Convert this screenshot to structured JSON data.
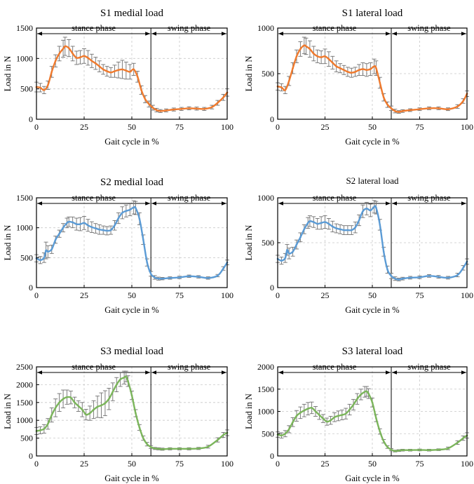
{
  "figure": {
    "xlabel": "Gait cycle in %",
    "ylabel": "Load in N"
  },
  "phases": {
    "stance": "stance phase",
    "swing": "swing phase",
    "stance_end_percent": 60
  },
  "chart_data": [
    {
      "type": "line",
      "title": "S1 medial load",
      "xlabel": "Gait cycle in %",
      "ylabel": "Load in N",
      "xlim": [
        0,
        100
      ],
      "ylim": [
        0,
        1500
      ],
      "xticks": [
        0,
        25,
        50,
        75,
        100
      ],
      "yticks": [
        0,
        500,
        1000,
        1500
      ],
      "color": "#ef7a2e",
      "x": [
        0,
        2,
        4,
        6,
        8,
        10,
        12,
        14,
        15,
        17,
        19,
        21,
        23,
        25,
        27,
        29,
        31,
        33,
        35,
        37,
        39,
        41,
        43,
        45,
        47,
        49,
        51,
        53,
        55,
        57,
        59,
        61,
        63,
        65,
        68,
        72,
        76,
        80,
        84,
        88,
        92,
        95,
        98,
        100
      ],
      "y": [
        530,
        520,
        480,
        560,
        780,
        960,
        1080,
        1160,
        1200,
        1170,
        1080,
        1010,
        1020,
        1040,
        1010,
        960,
        920,
        870,
        820,
        790,
        770,
        790,
        810,
        820,
        800,
        780,
        820,
        700,
        480,
        330,
        250,
        190,
        150,
        135,
        145,
        160,
        170,
        180,
        175,
        170,
        200,
        270,
        360,
        440
      ],
      "err": [
        80,
        70,
        60,
        70,
        90,
        100,
        120,
        140,
        150,
        140,
        120,
        110,
        110,
        120,
        120,
        110,
        100,
        90,
        80,
        80,
        80,
        100,
        130,
        150,
        140,
        120,
        100,
        90,
        70,
        60,
        50,
        40,
        30,
        25,
        25,
        25,
        25,
        25,
        25,
        25,
        30,
        40,
        50,
        60
      ]
    },
    {
      "type": "line",
      "title": "S1 lateral load",
      "xlabel": "Gait cycle in %",
      "ylabel": "Load in N",
      "xlim": [
        0,
        100
      ],
      "ylim": [
        0,
        1000
      ],
      "xticks": [
        0,
        25,
        50,
        75,
        100
      ],
      "yticks": [
        0,
        500,
        1000
      ],
      "color": "#ef7a2e",
      "x": [
        0,
        2,
        4,
        6,
        8,
        10,
        12,
        14,
        15,
        17,
        19,
        21,
        23,
        25,
        27,
        29,
        31,
        33,
        35,
        37,
        39,
        41,
        43,
        45,
        47,
        49,
        51,
        52,
        54,
        56,
        58,
        60,
        62,
        64,
        66,
        70,
        75,
        80,
        85,
        90,
        95,
        98,
        100
      ],
      "y": [
        360,
        350,
        320,
        420,
        560,
        690,
        770,
        810,
        800,
        770,
        720,
        690,
        680,
        690,
        660,
        620,
        580,
        560,
        540,
        520,
        510,
        520,
        540,
        550,
        540,
        550,
        580,
        560,
        400,
        240,
        160,
        120,
        90,
        80,
        90,
        100,
        110,
        120,
        120,
        110,
        140,
        200,
        280
      ],
      "err": [
        40,
        40,
        40,
        50,
        60,
        70,
        80,
        90,
        90,
        90,
        80,
        70,
        70,
        80,
        80,
        70,
        60,
        50,
        50,
        50,
        50,
        50,
        60,
        70,
        70,
        70,
        80,
        80,
        60,
        40,
        30,
        25,
        20,
        15,
        15,
        15,
        15,
        15,
        15,
        15,
        20,
        25,
        30
      ]
    },
    {
      "type": "line",
      "title": "S2 medial load",
      "xlabel": "Gait cycle in %",
      "ylabel": "Load in N",
      "xlim": [
        0,
        100
      ],
      "ylim": [
        0,
        1500
      ],
      "xticks": [
        0,
        25,
        50,
        75,
        100
      ],
      "yticks": [
        0,
        500,
        1000,
        1500
      ],
      "color": "#5b9bd5",
      "x": [
        0,
        2,
        4,
        5,
        6,
        8,
        10,
        12,
        14,
        16,
        17,
        19,
        21,
        23,
        25,
        27,
        29,
        31,
        33,
        35,
        37,
        39,
        41,
        43,
        45,
        47,
        49,
        51,
        52,
        54,
        56,
        58,
        60,
        62,
        64,
        66,
        70,
        75,
        80,
        85,
        90,
        95,
        98,
        100
      ],
      "y": [
        490,
        460,
        500,
        620,
        600,
        640,
        800,
        900,
        1000,
        1080,
        1100,
        1090,
        1060,
        1060,
        1080,
        1040,
        1010,
        990,
        970,
        960,
        950,
        960,
        1040,
        1160,
        1250,
        1280,
        1300,
        1340,
        1330,
        1150,
        800,
        420,
        230,
        170,
        150,
        150,
        160,
        170,
        190,
        180,
        160,
        200,
        320,
        420
      ],
      "err": [
        60,
        60,
        80,
        140,
        100,
        70,
        60,
        60,
        70,
        80,
        80,
        90,
        100,
        110,
        110,
        100,
        90,
        80,
        80,
        70,
        70,
        70,
        80,
        90,
        100,
        100,
        100,
        110,
        110,
        100,
        80,
        60,
        40,
        30,
        25,
        20,
        20,
        20,
        20,
        20,
        20,
        20,
        30,
        40
      ]
    },
    {
      "type": "line",
      "title": "S2 lateral load",
      "xlabel": "Gait cycle in %",
      "ylabel": "Load in N",
      "xlim": [
        0,
        100
      ],
      "ylim": [
        0,
        1000
      ],
      "xticks": [
        0,
        25,
        50,
        75,
        100
      ],
      "yticks": [
        0,
        500,
        1000
      ],
      "color": "#5b9bd5",
      "x": [
        0,
        2,
        4,
        5,
        6,
        8,
        10,
        12,
        14,
        16,
        17,
        19,
        21,
        23,
        25,
        27,
        29,
        31,
        33,
        35,
        37,
        39,
        41,
        43,
        45,
        47,
        49,
        51,
        52,
        54,
        56,
        58,
        60,
        62,
        64,
        66,
        70,
        75,
        80,
        85,
        90,
        95,
        98,
        100
      ],
      "y": [
        320,
        300,
        330,
        420,
        380,
        400,
        480,
        560,
        650,
        720,
        740,
        730,
        710,
        720,
        730,
        710,
        680,
        660,
        650,
        640,
        640,
        640,
        670,
        750,
        850,
        880,
        860,
        900,
        890,
        700,
        400,
        200,
        130,
        100,
        90,
        100,
        110,
        115,
        130,
        120,
        110,
        140,
        220,
        290
      ],
      "err": [
        40,
        40,
        50,
        60,
        60,
        50,
        50,
        50,
        50,
        60,
        60,
        60,
        60,
        70,
        70,
        60,
        60,
        50,
        50,
        50,
        50,
        50,
        60,
        60,
        70,
        70,
        70,
        70,
        70,
        60,
        50,
        40,
        30,
        20,
        15,
        15,
        15,
        15,
        15,
        15,
        15,
        20,
        25,
        30
      ]
    },
    {
      "type": "line",
      "title": "S3 medial load",
      "xlabel": "Gait cycle in %",
      "ylabel": "Load in N",
      "xlim": [
        0,
        100
      ],
      "ylim": [
        0,
        2500
      ],
      "xticks": [
        0,
        25,
        50,
        75,
        100
      ],
      "yticks": [
        0,
        500,
        1000,
        1500,
        2000,
        2500
      ],
      "color": "#7bb55b",
      "x": [
        0,
        2,
        4,
        6,
        8,
        10,
        12,
        14,
        16,
        18,
        20,
        22,
        24,
        26,
        28,
        30,
        32,
        34,
        36,
        38,
        40,
        42,
        44,
        46,
        47,
        48,
        50,
        52,
        54,
        56,
        58,
        60,
        62,
        64,
        66,
        70,
        75,
        80,
        85,
        90,
        95,
        98,
        100
      ],
      "y": [
        700,
        720,
        760,
        900,
        1150,
        1350,
        1500,
        1600,
        1650,
        1640,
        1500,
        1400,
        1300,
        1160,
        1200,
        1300,
        1380,
        1420,
        1480,
        1600,
        1800,
        2000,
        2150,
        2200,
        2230,
        2100,
        1700,
        1200,
        800,
        500,
        330,
        250,
        210,
        200,
        190,
        200,
        200,
        200,
        210,
        260,
        450,
        590,
        650
      ],
      "err": [
        100,
        100,
        120,
        150,
        200,
        250,
        250,
        250,
        200,
        180,
        150,
        150,
        200,
        150,
        200,
        250,
        300,
        350,
        350,
        300,
        250,
        200,
        200,
        180,
        150,
        150,
        120,
        100,
        80,
        60,
        50,
        40,
        30,
        30,
        30,
        30,
        30,
        30,
        30,
        40,
        60,
        70,
        80
      ]
    },
    {
      "type": "line",
      "title": "S3 lateral load",
      "xlabel": "Gait cycle in %",
      "ylabel": "Load in N",
      "xlim": [
        0,
        100
      ],
      "ylim": [
        0,
        2000
      ],
      "xticks": [
        0,
        25,
        50,
        75,
        100
      ],
      "yticks": [
        0,
        500,
        1000,
        1500,
        2000
      ],
      "color": "#7bb55b",
      "x": [
        0,
        2,
        4,
        6,
        8,
        10,
        12,
        14,
        16,
        18,
        20,
        22,
        24,
        26,
        28,
        30,
        32,
        34,
        36,
        38,
        40,
        42,
        44,
        46,
        47,
        48,
        50,
        52,
        54,
        56,
        58,
        60,
        62,
        64,
        66,
        70,
        75,
        80,
        85,
        90,
        95,
        98,
        100
      ],
      "y": [
        480,
        460,
        500,
        600,
        760,
        900,
        970,
        1020,
        1060,
        1080,
        1000,
        920,
        840,
        770,
        800,
        870,
        900,
        920,
        950,
        1040,
        1150,
        1280,
        1380,
        1440,
        1450,
        1400,
        1200,
        850,
        550,
        330,
        200,
        140,
        110,
        120,
        130,
        130,
        135,
        130,
        140,
        170,
        300,
        400,
        460
      ],
      "err": [
        60,
        60,
        70,
        80,
        100,
        120,
        130,
        140,
        140,
        130,
        110,
        100,
        90,
        80,
        90,
        100,
        110,
        110,
        120,
        120,
        120,
        120,
        120,
        120,
        110,
        110,
        100,
        80,
        60,
        40,
        30,
        25,
        20,
        20,
        20,
        20,
        20,
        20,
        20,
        30,
        40,
        50,
        60
      ]
    }
  ]
}
